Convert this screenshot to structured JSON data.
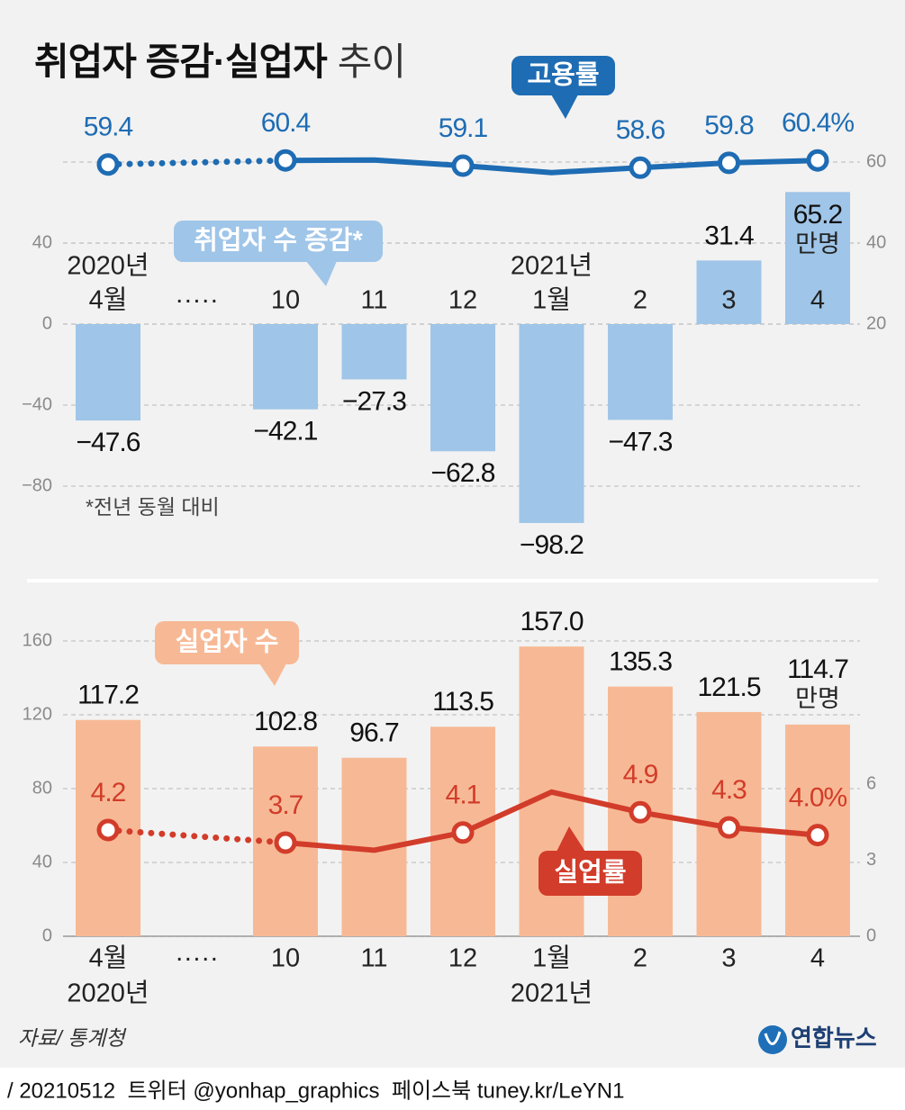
{
  "header": {
    "title_bold": "취업자 증감·실업자",
    "title_light": "추이"
  },
  "chart_data": [
    {
      "type": "bar",
      "categories": [
        "4월",
        "·····",
        "10",
        "11",
        "12",
        "1월",
        "2",
        "3",
        "4"
      ],
      "year_labels": [
        "2020년",
        null,
        null,
        null,
        null,
        "2021년",
        null,
        null,
        null
      ],
      "note": "*전년 동월 대비",
      "unit_label": "만명",
      "ylim": [
        -100,
        80
      ],
      "yticks": [
        {
          "value": -80,
          "label": "−80"
        },
        {
          "value": -40,
          "label": "−40"
        },
        0,
        40
      ],
      "y2lim": [
        -30,
        60
      ],
      "y2ticks": [
        20,
        40,
        60
      ],
      "grid": true,
      "y2grid": true,
      "series": [
        {
          "name": "취업자 수 증감*",
          "type": "bar",
          "color": "#9fc5e8",
          "values": [
            -47.6,
            null,
            -42.1,
            -27.3,
            -62.8,
            -98.2,
            -47.3,
            31.4,
            65.2
          ],
          "value_labels": [
            "−47.6",
            null,
            "−42.1",
            "−27.3",
            "−62.8",
            "−98.2",
            "−47.3",
            "31.4",
            "65.2"
          ]
        },
        {
          "name": "고용률",
          "type": "line",
          "axis": "y2",
          "color": "#1e6cb3",
          "values": [
            59.4,
            null,
            60.4,
            60.5,
            59.1,
            57.4,
            58.6,
            59.8,
            60.4
          ],
          "value_labels": [
            "59.4",
            null,
            "60.4",
            null,
            "59.1",
            null,
            "58.6",
            "59.8",
            "60.4%"
          ]
        }
      ]
    },
    {
      "type": "bar",
      "categories": [
        "4월",
        "·····",
        "10",
        "11",
        "12",
        "1월",
        "2",
        "3",
        "4"
      ],
      "year_labels": [
        "2020년",
        null,
        null,
        null,
        null,
        "2021년",
        null,
        null,
        null
      ],
      "unit_label": "만명",
      "ylim": [
        0,
        170
      ],
      "yticks": [
        0,
        40,
        80,
        120,
        160
      ],
      "y2lim": [
        0,
        12.4
      ],
      "y2ticks": [
        0,
        3,
        6
      ],
      "grid": true,
      "y2grid": false,
      "series": [
        {
          "name": "실업자 수",
          "type": "bar",
          "color": "#f7b995",
          "values": [
            117.2,
            null,
            102.8,
            96.7,
            113.5,
            157.0,
            135.3,
            121.5,
            114.7
          ],
          "value_labels": [
            "117.2",
            null,
            "102.8",
            "96.7",
            "113.5",
            "157.0",
            "135.3",
            "121.5",
            "114.7"
          ]
        },
        {
          "name": "실업률",
          "type": "line",
          "axis": "y2",
          "color": "#d23c2a",
          "values": [
            4.2,
            null,
            3.7,
            3.4,
            4.1,
            5.7,
            4.9,
            4.3,
            4.0
          ],
          "value_labels": [
            "4.2",
            null,
            "3.7",
            null,
            "4.1",
            null,
            "4.9",
            "4.3",
            "4.0%"
          ]
        }
      ]
    }
  ],
  "source": "자료/ 통계청",
  "logo": "연합뉴스",
  "footer": "/ 20210512  트위터 @yonhap_graphics  페이스북 tuney.kr/LeYN1"
}
